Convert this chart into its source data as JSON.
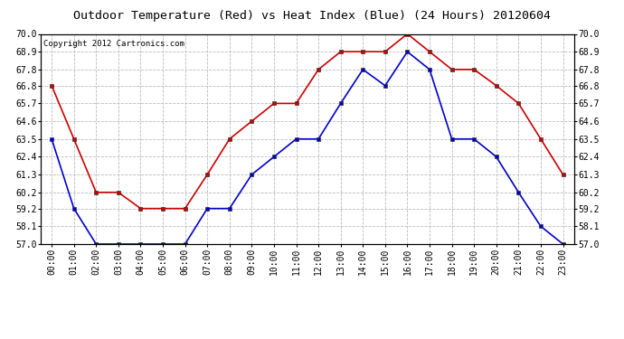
{
  "title": "Outdoor Temperature (Red) vs Heat Index (Blue) (24 Hours) 20120604",
  "copyright": "Copyright 2012 Cartronics.com",
  "x_labels": [
    "00:00",
    "01:00",
    "02:00",
    "03:00",
    "04:00",
    "05:00",
    "06:00",
    "07:00",
    "08:00",
    "09:00",
    "10:00",
    "11:00",
    "12:00",
    "13:00",
    "14:00",
    "15:00",
    "16:00",
    "17:00",
    "18:00",
    "19:00",
    "20:00",
    "21:00",
    "22:00",
    "23:00"
  ],
  "red_temp": [
    66.8,
    63.5,
    60.2,
    60.2,
    59.2,
    59.2,
    59.2,
    61.3,
    63.5,
    64.6,
    65.7,
    65.7,
    67.8,
    68.9,
    68.9,
    68.9,
    70.0,
    68.9,
    67.8,
    67.8,
    66.8,
    65.7,
    63.5,
    61.3
  ],
  "blue_heat": [
    63.5,
    59.2,
    57.0,
    57.0,
    57.0,
    57.0,
    57.0,
    59.2,
    59.2,
    61.3,
    62.4,
    63.5,
    63.5,
    65.7,
    67.8,
    66.8,
    68.9,
    67.8,
    63.5,
    63.5,
    62.4,
    60.2,
    58.1,
    57.0
  ],
  "ylim": [
    57.0,
    70.0
  ],
  "yticks": [
    57.0,
    58.1,
    59.2,
    60.2,
    61.3,
    62.4,
    63.5,
    64.6,
    65.7,
    66.8,
    67.8,
    68.9,
    70.0
  ],
  "red_color": "#cc0000",
  "blue_color": "#0000cc",
  "bg_color": "#ffffff",
  "grid_color": "#bbbbbb",
  "title_fontsize": 9.5,
  "tick_fontsize": 7,
  "copyright_fontsize": 6.5
}
